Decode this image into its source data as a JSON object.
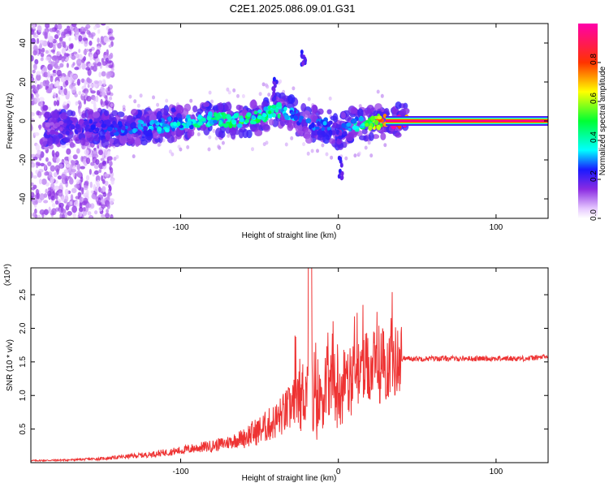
{
  "title": "C2E1.2025.086.09.01.G31",
  "chart_data": [
    {
      "type": "heatmap",
      "xlabel": "Height of straight line (km)",
      "ylabel": "Frequency (Hz)",
      "xlim": [
        -195,
        133
      ],
      "ylim": [
        -50,
        50
      ],
      "x_ticks": [
        -100,
        0,
        100
      ],
      "y_ticks": [
        -40,
        -20,
        0,
        20,
        40
      ],
      "colorbar": {
        "label": "Normalized spectral amplitude",
        "range": [
          0,
          1
        ],
        "ticks": [
          "0.0",
          "0.2",
          "0.4",
          "0.6",
          "0.8"
        ]
      },
      "ridge": {
        "x": [
          -185,
          -160,
          -140,
          -120,
          -100,
          -80,
          -65,
          -50,
          -40,
          -30,
          -20,
          -10,
          0,
          10,
          20,
          30,
          40,
          60,
          80,
          100,
          120,
          133
        ],
        "freq": [
          -4,
          -3,
          -4,
          -3,
          -1,
          1,
          0,
          2,
          6,
          4,
          -2,
          -1,
          -6,
          -2,
          -1,
          0,
          0,
          0,
          0,
          0,
          0,
          0
        ],
        "amplitude": [
          0.15,
          0.2,
          0.25,
          0.3,
          0.35,
          0.4,
          0.45,
          0.45,
          0.4,
          0.3,
          0.25,
          0.3,
          0.2,
          0.35,
          0.5,
          0.85,
          0.95,
          0.95,
          0.95,
          0.95,
          0.95,
          0.95
        ]
      }
    },
    {
      "type": "line",
      "xlabel": "Height of straight line (km)",
      "ylabel": "SNR (10 * v/v)",
      "y_multiplier": "(x10⁴)",
      "xlim": [
        -195,
        133
      ],
      "ylim": [
        0,
        2.9
      ],
      "x_ticks": [
        -100,
        0,
        100
      ],
      "y_ticks": [
        "0.5",
        "1.0",
        "1.5",
        "2.0",
        "2.5"
      ],
      "color": "#ee3333",
      "series": [
        {
          "x": [
            -195,
            -170,
            -150,
            -140,
            -130,
            -120,
            -110,
            -100,
            -90,
            -80,
            -70,
            -60,
            -50,
            -40,
            -30,
            -25,
            -20,
            -18,
            -15,
            -10,
            -5,
            0,
            5,
            10,
            15,
            20,
            25,
            30,
            35,
            40,
            50,
            60,
            80,
            100,
            120,
            133
          ],
          "y": [
            0.03,
            0.04,
            0.06,
            0.08,
            0.1,
            0.12,
            0.15,
            0.18,
            0.22,
            0.25,
            0.3,
            0.38,
            0.48,
            0.62,
            0.82,
            0.95,
            1.1,
            1.3,
            0.7,
            1.05,
            1.15,
            1.05,
            1.2,
            1.25,
            1.35,
            1.4,
            1.42,
            1.45,
            1.5,
            1.55,
            1.55,
            1.55,
            1.55,
            1.55,
            1.55,
            1.58
          ]
        }
      ]
    }
  ]
}
